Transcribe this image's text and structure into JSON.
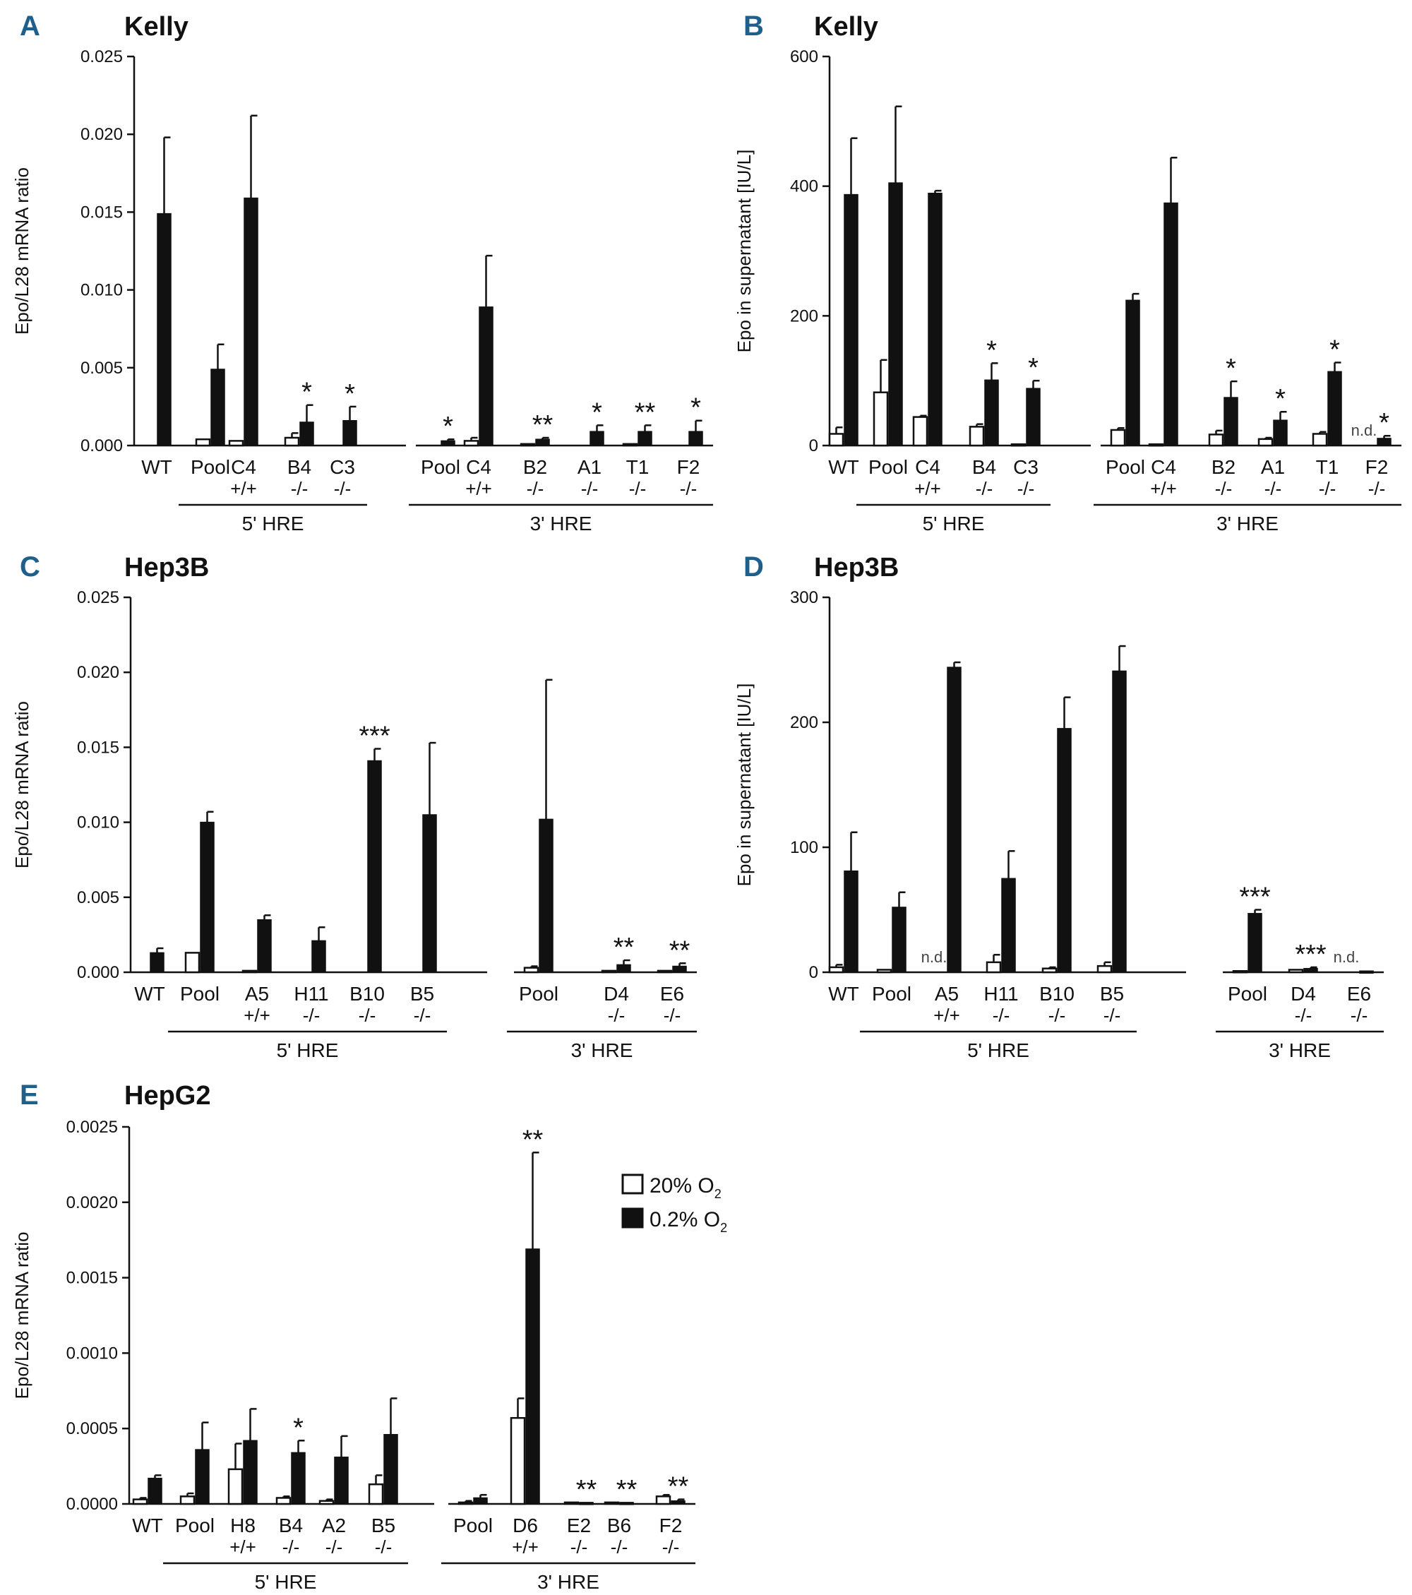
{
  "legend": {
    "items": [
      {
        "label": "20% O",
        "sub": "2",
        "color": "#ffffff"
      },
      {
        "label": "0.2% O",
        "sub": "2",
        "color": "#111111"
      }
    ]
  },
  "chart_data": [
    {
      "type": "bar",
      "panel": "A",
      "title": "Kelly",
      "ylabel": "Epo/L28 mRNA ratio",
      "ylim": [
        0,
        0.025
      ],
      "yticks": [
        "0.000",
        "0.005",
        "0.010",
        "0.015",
        "0.020",
        "0.025"
      ],
      "series": [
        {
          "name": "20% O2"
        },
        {
          "name": "0.2% O2"
        }
      ],
      "categories": [
        {
          "label": "WT",
          "genotype": "",
          "white": 0,
          "white_err": 0,
          "black": 0.0149,
          "black_err": 0.0049,
          "sig": "",
          "nd": ""
        },
        {
          "label": "Pool",
          "genotype": "",
          "white": 0.0004,
          "white_err": 0,
          "black": 0.0049,
          "black_err": 0.0016,
          "sig": "",
          "nd": ""
        },
        {
          "label": "C4",
          "genotype": "+/+",
          "white": 0.0003,
          "white_err": 0,
          "black": 0.0159,
          "black_err": 0.0053,
          "sig": "",
          "nd": ""
        },
        {
          "label": "B4",
          "genotype": "-/-",
          "white": 0.0005,
          "white_err": 0.0003,
          "black": 0.0015,
          "black_err": 0.0011,
          "sig": "*",
          "nd": ""
        },
        {
          "label": "C3",
          "genotype": "-/-",
          "white": 0,
          "white_err": 0,
          "black": 0.0016,
          "black_err": 0.0009,
          "sig": "*",
          "nd": ""
        },
        {
          "label": "Pool",
          "genotype": "",
          "white": 0,
          "white_err": 0,
          "black": 0.0003,
          "black_err": 0.0001,
          "sig": "*",
          "nd": ""
        },
        {
          "label": "C4",
          "genotype": "+/+",
          "white": 0.0003,
          "white_err": 0.0002,
          "black": 0.0089,
          "black_err": 0.0033,
          "sig": "",
          "nd": ""
        },
        {
          "label": "B2",
          "genotype": "-/-",
          "white": 0.0001,
          "white_err": 0,
          "black": 0.0004,
          "black_err": 0.0001,
          "sig": "**",
          "nd": ""
        },
        {
          "label": "A1",
          "genotype": "-/-",
          "white": 0,
          "white_err": 0,
          "black": 0.0009,
          "black_err": 0.0004,
          "sig": "*",
          "nd": ""
        },
        {
          "label": "T1",
          "genotype": "-/-",
          "white": 0.0001,
          "white_err": 0,
          "black": 0.0009,
          "black_err": 0.0004,
          "sig": "**",
          "nd": ""
        },
        {
          "label": "F2",
          "genotype": "-/-",
          "white": 0,
          "white_err": 0,
          "black": 0.0009,
          "black_err": 0.0007,
          "sig": "*",
          "nd": ""
        }
      ],
      "groups": [
        {
          "label": "5' HRE",
          "from": 1,
          "to": 4
        },
        {
          "label": "3' HRE",
          "from": 5,
          "to": 10
        }
      ]
    },
    {
      "type": "bar",
      "panel": "B",
      "title": "Kelly",
      "ylabel": "Epo in supernatant [IU/L]",
      "ylim": [
        0,
        600
      ],
      "yticks": [
        "0",
        "200",
        "400",
        "600"
      ],
      "series": [
        {
          "name": "20% O2"
        },
        {
          "name": "0.2% O2"
        }
      ],
      "categories": [
        {
          "label": "WT",
          "genotype": "",
          "white": 18,
          "white_err": 10,
          "black": 387,
          "black_err": 87,
          "sig": "",
          "nd": ""
        },
        {
          "label": "Pool",
          "genotype": "",
          "white": 82,
          "white_err": 50,
          "black": 405,
          "black_err": 118,
          "sig": "",
          "nd": ""
        },
        {
          "label": "C4",
          "genotype": "+/+",
          "white": 44,
          "white_err": 2,
          "black": 389,
          "black_err": 4,
          "sig": "",
          "nd": ""
        },
        {
          "label": "B4",
          "genotype": "-/-",
          "white": 29,
          "white_err": 4,
          "black": 101,
          "black_err": 26,
          "sig": "*",
          "nd": ""
        },
        {
          "label": "C3",
          "genotype": "-/-",
          "white": 2,
          "white_err": 0,
          "black": 88,
          "black_err": 12,
          "sig": "*",
          "nd": ""
        },
        {
          "label": "Pool",
          "genotype": "",
          "white": 24,
          "white_err": 3,
          "black": 224,
          "black_err": 10,
          "sig": "",
          "nd": ""
        },
        {
          "label": "C4",
          "genotype": "+/+",
          "white": 2,
          "white_err": 0,
          "black": 374,
          "black_err": 70,
          "sig": "",
          "nd": ""
        },
        {
          "label": "B2",
          "genotype": "-/-",
          "white": 17,
          "white_err": 6,
          "black": 74,
          "black_err": 25,
          "sig": "*",
          "nd": ""
        },
        {
          "label": "A1",
          "genotype": "-/-",
          "white": 10,
          "white_err": 2,
          "black": 39,
          "black_err": 13,
          "sig": "*",
          "nd": ""
        },
        {
          "label": "T1",
          "genotype": "-/-",
          "white": 18,
          "white_err": 3,
          "black": 114,
          "black_err": 14,
          "sig": "*",
          "nd": ""
        },
        {
          "label": "F2",
          "genotype": "-/-",
          "white": 0,
          "white_err": 0,
          "black": 11,
          "black_err": 4,
          "sig": "*",
          "nd": "n.d."
        }
      ],
      "groups": [
        {
          "label": "5' HRE",
          "from": 1,
          "to": 4
        },
        {
          "label": "3' HRE",
          "from": 5,
          "to": 10
        }
      ]
    },
    {
      "type": "bar",
      "panel": "C",
      "title": "Hep3B",
      "ylabel": "Epo/L28 mRNA ratio",
      "ylim": [
        0,
        0.025
      ],
      "yticks": [
        "0.000",
        "0.005",
        "0.010",
        "0.015",
        "0.020",
        "0.025"
      ],
      "series": [
        {
          "name": "20% O2"
        },
        {
          "name": "0.2% O2"
        }
      ],
      "categories": [
        {
          "label": "WT",
          "genotype": "",
          "white": 0,
          "white_err": 0,
          "black": 0.0013,
          "black_err": 0.0003,
          "sig": "",
          "nd": ""
        },
        {
          "label": "Pool",
          "genotype": "",
          "white": 0.0013,
          "white_err": 0,
          "black": 0.01,
          "black_err": 0.0007,
          "sig": "",
          "nd": ""
        },
        {
          "label": "A5",
          "genotype": "+/+",
          "white": 0.0001,
          "white_err": 0,
          "black": 0.0035,
          "black_err": 0.0003,
          "sig": "",
          "nd": ""
        },
        {
          "label": "H11",
          "genotype": "-/-",
          "white": 0,
          "white_err": 0,
          "black": 0.0021,
          "black_err": 0.0009,
          "sig": "",
          "nd": ""
        },
        {
          "label": "B10",
          "genotype": "-/-",
          "white": 0,
          "white_err": 0,
          "black": 0.0141,
          "black_err": 0.0008,
          "sig": "***",
          "nd": ""
        },
        {
          "label": "B5",
          "genotype": "-/-",
          "white": 0,
          "white_err": 0,
          "black": 0.0105,
          "black_err": 0.0048,
          "sig": "",
          "nd": ""
        },
        {
          "label": "Pool",
          "genotype": "",
          "white": 0.0003,
          "white_err": 0.0001,
          "black": 0.0102,
          "black_err": 0.0093,
          "sig": "",
          "nd": ""
        },
        {
          "label": "D4",
          "genotype": "-/-",
          "white": 0.0001,
          "white_err": 0,
          "black": 0.0005,
          "black_err": 0.0003,
          "sig": "**",
          "nd": ""
        },
        {
          "label": "E6",
          "genotype": "-/-",
          "white": 0.0001,
          "white_err": 0,
          "black": 0.0004,
          "black_err": 0.0002,
          "sig": "**",
          "nd": ""
        }
      ],
      "groups": [
        {
          "label": "5' HRE",
          "from": 1,
          "to": 5
        },
        {
          "label": "3' HRE",
          "from": 6,
          "to": 8
        }
      ]
    },
    {
      "type": "bar",
      "panel": "D",
      "title": "Hep3B",
      "ylabel": "Epo in supernatant [IU/L]",
      "ylim": [
        0,
        300
      ],
      "yticks": [
        "0",
        "100",
        "200",
        "300"
      ],
      "series": [
        {
          "name": "20% O2"
        },
        {
          "name": "0.2% O2"
        }
      ],
      "categories": [
        {
          "label": "WT",
          "genotype": "",
          "white": 4,
          "white_err": 2,
          "black": 81,
          "black_err": 31,
          "sig": "",
          "nd": ""
        },
        {
          "label": "Pool",
          "genotype": "",
          "white": 2,
          "white_err": 0,
          "black": 52,
          "black_err": 12,
          "sig": "",
          "nd": ""
        },
        {
          "label": "A5",
          "genotype": "+/+",
          "white": 0,
          "white_err": 0,
          "black": 244,
          "black_err": 4,
          "sig": "",
          "nd": "n.d."
        },
        {
          "label": "H11",
          "genotype": "-/-",
          "white": 8,
          "white_err": 6,
          "black": 75,
          "black_err": 22,
          "sig": "",
          "nd": ""
        },
        {
          "label": "B10",
          "genotype": "-/-",
          "white": 3,
          "white_err": 1,
          "black": 195,
          "black_err": 25,
          "sig": "",
          "nd": ""
        },
        {
          "label": "B5",
          "genotype": "-/-",
          "white": 5,
          "white_err": 3,
          "black": 241,
          "black_err": 20,
          "sig": "",
          "nd": ""
        },
        {
          "label": "Pool",
          "genotype": "",
          "white": 1,
          "white_err": 0,
          "black": 47,
          "black_err": 3,
          "sig": "***",
          "nd": ""
        },
        {
          "label": "D4",
          "genotype": "-/-",
          "white": 2,
          "white_err": 0,
          "black": 3,
          "black_err": 1,
          "sig": "***",
          "nd": ""
        },
        {
          "label": "E6",
          "genotype": "-/-",
          "white": 0,
          "white_err": 0,
          "black": 1,
          "black_err": 0,
          "sig": "",
          "nd": "n.d."
        }
      ],
      "groups": [
        {
          "label": "5' HRE",
          "from": 1,
          "to": 5
        },
        {
          "label": "3' HRE",
          "from": 6,
          "to": 8
        }
      ]
    },
    {
      "type": "bar",
      "panel": "E",
      "title": "HepG2",
      "ylabel": "Epo/L28 mRNA ratio",
      "ylim": [
        0,
        0.0025
      ],
      "yticks": [
        "0.0000",
        "0.0005",
        "0.0010",
        "0.0015",
        "0.0020",
        "0.0025"
      ],
      "series": [
        {
          "name": "20% O2"
        },
        {
          "name": "0.2% O2"
        }
      ],
      "categories": [
        {
          "label": "WT",
          "genotype": "",
          "white": 3e-05,
          "white_err": 1e-05,
          "black": 0.00017,
          "black_err": 2e-05,
          "sig": "",
          "nd": ""
        },
        {
          "label": "Pool",
          "genotype": "",
          "white": 5e-05,
          "white_err": 2e-05,
          "black": 0.00036,
          "black_err": 0.00018,
          "sig": "",
          "nd": ""
        },
        {
          "label": "H8",
          "genotype": "+/+",
          "white": 0.00023,
          "white_err": 0.00017,
          "black": 0.00042,
          "black_err": 0.00021,
          "sig": "",
          "nd": ""
        },
        {
          "label": "B4",
          "genotype": "-/-",
          "white": 4e-05,
          "white_err": 1e-05,
          "black": 0.00034,
          "black_err": 8e-05,
          "sig": "*",
          "nd": ""
        },
        {
          "label": "A2",
          "genotype": "-/-",
          "white": 2e-05,
          "white_err": 1e-05,
          "black": 0.00031,
          "black_err": 0.00014,
          "sig": "",
          "nd": ""
        },
        {
          "label": "B5",
          "genotype": "-/-",
          "white": 0.00013,
          "white_err": 6e-05,
          "black": 0.00046,
          "black_err": 0.00024,
          "sig": "",
          "nd": ""
        },
        {
          "label": "Pool",
          "genotype": "",
          "white": 1e-05,
          "white_err": 1e-05,
          "black": 4e-05,
          "black_err": 2e-05,
          "sig": "",
          "nd": ""
        },
        {
          "label": "D6",
          "genotype": "+/+",
          "white": 0.00057,
          "white_err": 0.00013,
          "black": 0.00169,
          "black_err": 0.00064,
          "sig": "**",
          "nd": ""
        },
        {
          "label": "E2",
          "genotype": "-/-",
          "white": 1e-05,
          "white_err": 0,
          "black": 1e-05,
          "black_err": 0,
          "sig": "**",
          "nd": ""
        },
        {
          "label": "B6",
          "genotype": "-/-",
          "white": 1e-05,
          "white_err": 0,
          "black": 1e-05,
          "black_err": 0,
          "sig": "**",
          "nd": ""
        },
        {
          "label": "F2",
          "genotype": "-/-",
          "white": 5e-05,
          "white_err": 1e-05,
          "black": 2e-05,
          "black_err": 1e-05,
          "sig": "**",
          "nd": ""
        }
      ],
      "groups": [
        {
          "label": "5' HRE",
          "from": 1,
          "to": 5
        },
        {
          "label": "3' HRE",
          "from": 6,
          "to": 10
        }
      ]
    }
  ]
}
